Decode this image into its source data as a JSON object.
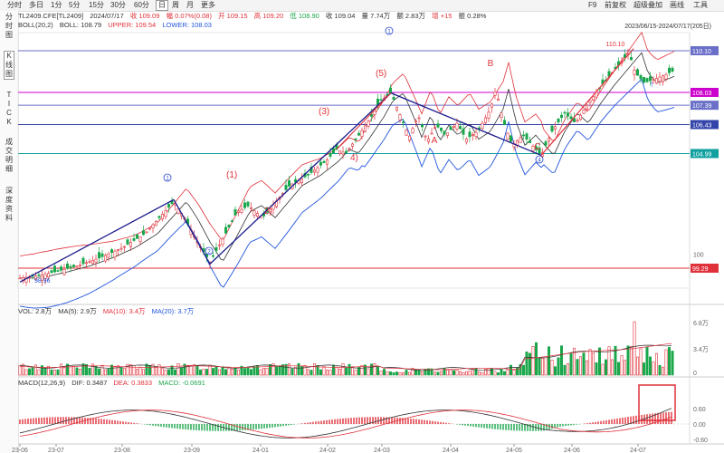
{
  "toolbar": {
    "tabs": [
      "分时",
      "多日",
      "1分",
      "5分",
      "15分",
      "30分",
      "60分",
      "日",
      "周",
      "月",
      "更多"
    ],
    "active_tab": "日",
    "right_items": [
      "F9",
      "前复权",
      "超级叠加",
      "画线",
      "工具"
    ]
  },
  "side_tabs": [
    {
      "label": "分时图",
      "chars": [
        "分",
        "时",
        "图"
      ]
    },
    {
      "label": "K线图",
      "chars": [
        "K",
        "线",
        "图"
      ]
    },
    {
      "label": "TICK",
      "chars": [
        "T",
        "I",
        "C",
        "K"
      ]
    },
    {
      "label": "成交明细",
      "chars": [
        "成",
        "交",
        "明",
        "细"
      ]
    },
    {
      "label": "深度资料",
      "chars": [
        "深",
        "度",
        "资",
        "料"
      ]
    }
  ],
  "quote": {
    "symbol": "TL2409.CFE[TL2409]",
    "date": "2024/07/17",
    "close": "收 109.09",
    "change": "幅 0.07%(0.08)",
    "open": "开 109.15",
    "high": "高 109.20",
    "low": "低 108.90",
    "prev": "收 109.04",
    "volume": "量 7.74万",
    "turnover": "额 2.83万",
    "oi_change": "增 +15",
    "amplitude": "振 0.28%"
  },
  "boll": {
    "name": "BOLL(20,2)",
    "boll": "BOLL: 108.79",
    "upper": "UPPER: 109.54",
    "lower": "LOWER: 108.03"
  },
  "date_range": "2023/06/15-2024/07/17(205日)",
  "vol_header": {
    "name": "VOL: 2.8万",
    "ma5": "MA(5): 2.9万",
    "ma10": "MA(10): 3.4万",
    "ma20": "MA(20): 3.7万"
  },
  "macd_header": {
    "name": "MACD(12,26,9)",
    "dif": "DIF: 0.3487",
    "dea": "DEA: 0.3833",
    "macd": "MACD: -0.0691"
  },
  "price_badges": [
    {
      "text": "110.10",
      "bg": "#6a6fc8"
    },
    {
      "text": "108.03",
      "bg": "#cc00cc"
    },
    {
      "text": "107.39",
      "bg": "#6a6fc8"
    },
    {
      "text": "106.43",
      "bg": "#3344aa"
    },
    {
      "text": "104.99",
      "bg": "#10a0a0"
    },
    {
      "text": "99.29",
      "bg": "#e0313a"
    }
  ],
  "y_label_100": "100",
  "low_label": "98.96",
  "high_label": "110.10",
  "vol_axis": [
    "6.8万",
    "3.4万",
    "0"
  ],
  "macd_axis": [
    "0.60",
    "0.00",
    "-0.60"
  ],
  "x_axis": [
    "23-06",
    "23-07",
    "23-08",
    "23-09",
    "24-01",
    "24-02",
    "24-03",
    "24-04",
    "24-05",
    "24-06",
    "24-07"
  ],
  "wave_labels": {
    "circle1_a": "1",
    "circle2": "2",
    "paren1": "(1)",
    "paren2": "2)",
    "paren3": "(3)",
    "paren4": "4)",
    "paren5": "(5)",
    "circle1_b": "1",
    "A": "A",
    "B": "B",
    "C": "C",
    "circle4": "4",
    "arrow": "↑"
  },
  "colors": {
    "up": "#e0313a",
    "down": "#1aa64a",
    "upper_band": "#e0313a",
    "lower_band": "#2255dd",
    "mid_band": "#333333",
    "trend": "#1a1a8c"
  }
}
